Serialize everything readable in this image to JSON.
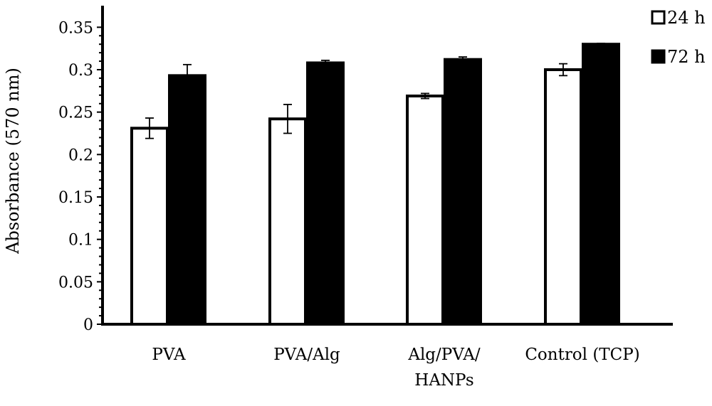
{
  "chart_data": {
    "type": "bar",
    "title": "",
    "xlabel": "",
    "ylabel": "Absorbance (570 nm)",
    "ylim": [
      0,
      0.35
    ],
    "yticks": [
      "0",
      "0.05",
      "0.1",
      "0.15",
      "0.2",
      "0.25",
      "0.3",
      "0.35"
    ],
    "categories": [
      [
        "PVA"
      ],
      [
        "PVA/Alg"
      ],
      [
        "Alg/PVA/",
        "HANPs"
      ],
      [
        "Control (TCP)"
      ]
    ],
    "series": [
      {
        "name": "24 h",
        "color": "#ffffff",
        "values": [
          0.231,
          0.242,
          0.269,
          0.3
        ],
        "errors": [
          0.012,
          0.017,
          0.003,
          0.007
        ]
      },
      {
        "name": "72 h",
        "color": "#000000",
        "values": [
          0.293,
          0.308,
          0.312,
          0.33
        ],
        "errors": [
          0.013,
          0.003,
          0.003,
          0.001
        ]
      }
    ],
    "legend_position": "top-right",
    "grid": false
  }
}
